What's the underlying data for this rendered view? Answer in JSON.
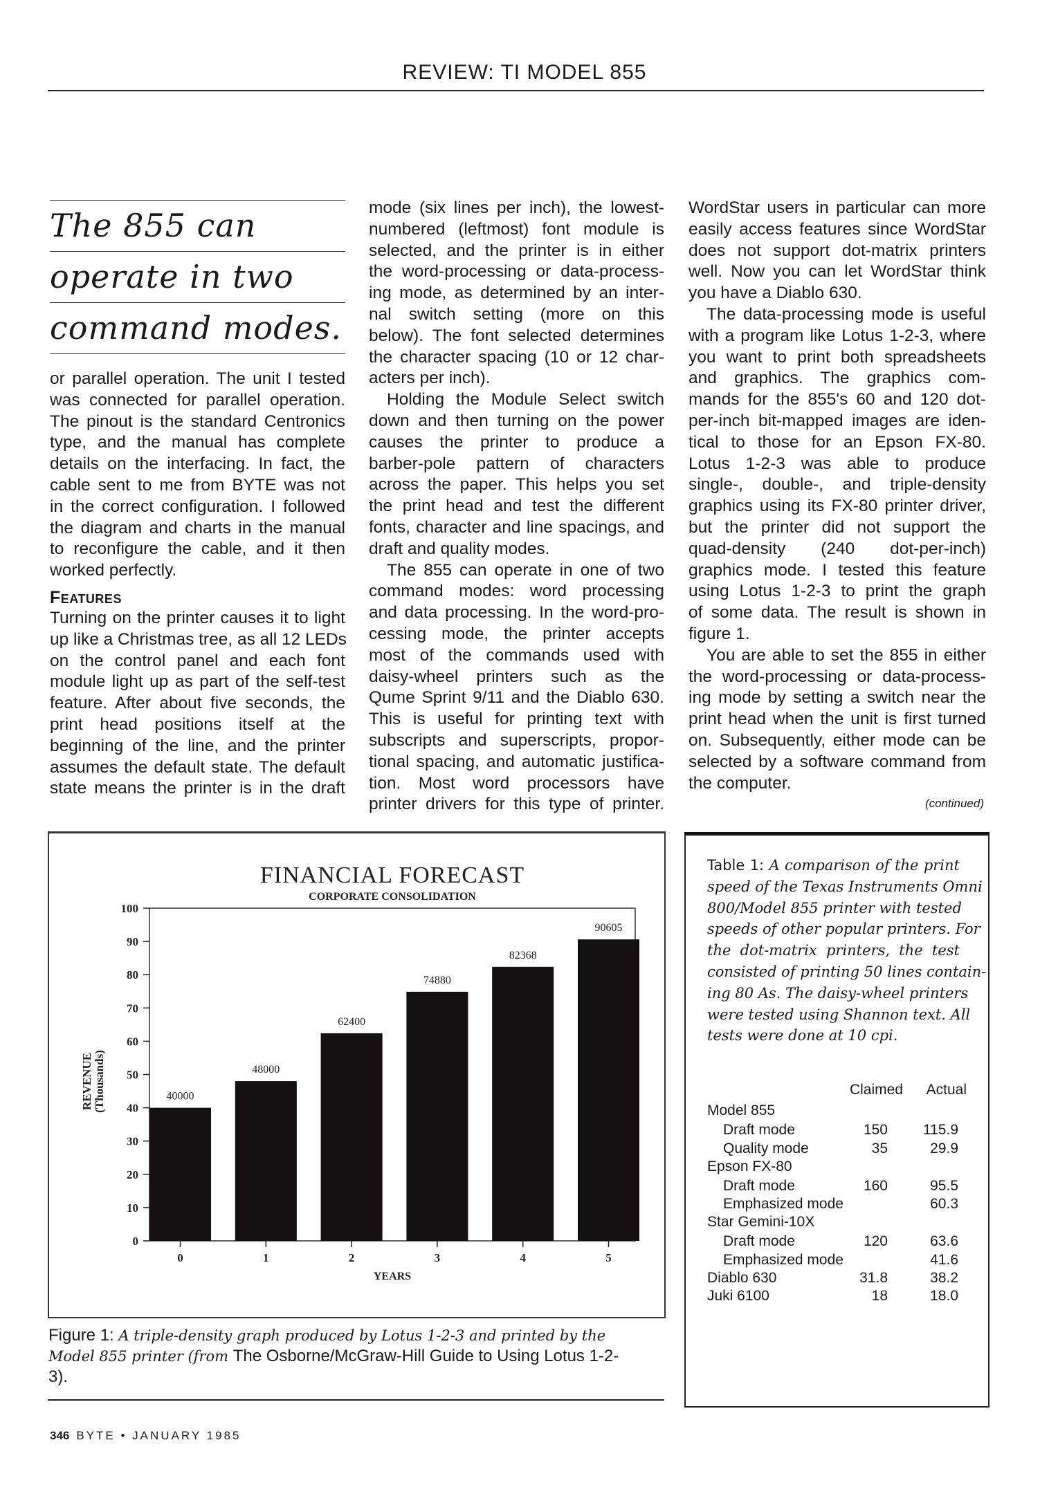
{
  "running_head": "REVIEW: TI MODEL 855",
  "pull_quote": [
    "The 855 can",
    "operate in two",
    "command modes."
  ],
  "columns": [
    [
      {
        "indent": false,
        "lines": [
          "or parallel operation. The unit I tested",
          "was connected for parallel operation.",
          "The pinout is the standard Centronics",
          "type, and the manual has complete",
          "details on the interfacing. In fact, the",
          "cable sent to me from BYTE was not",
          "in the correct configuration. I followed",
          "the diagram and charts in the manual",
          "to reconfigure the cable, and it then",
          "worked perfectly."
        ]
      },
      {
        "heading": "Features"
      },
      {
        "indent": false,
        "lines": [
          "Turning on the printer causes it to light",
          "up like a Christmas tree, as all 12 LEDs",
          "on the control panel and each font",
          "module light up as part of the self-test",
          "feature. After about five seconds, the",
          "print head positions itself at the",
          "beginning of the line, and the printer",
          "assumes the default state. The default",
          "state means the printer is in the draft"
        ],
        "continues": true
      }
    ],
    [
      {
        "indent": false,
        "lines": [
          "mode (six lines per inch), the lowest-",
          "numbered (leftmost) font module is",
          "selected, and the printer is in either",
          "the word-processing or data-process-",
          "ing mode, as determined by an inter-",
          "nal switch setting (more on this",
          "below). The font selected determines",
          "the character spacing (10 or 12 char-",
          "acters per inch)."
        ]
      },
      {
        "indent": true,
        "lines": [
          "Holding the Module Select switch",
          "down and then turning on the power",
          "causes the printer to produce a",
          "barber-pole pattern of characters",
          "across the paper. This helps you set",
          "the print head and test the different",
          "fonts, character and line spacings, and",
          "draft and quality modes."
        ]
      },
      {
        "indent": true,
        "lines": [
          "The 855 can operate in one of two",
          "command modes: word processing",
          "and data processing. In the word-pro-",
          "cessing mode, the printer accepts",
          "most of the commands used with",
          "daisy-wheel printers such as the",
          "Qume Sprint 9/11 and the Diablo 630.",
          "This is useful for printing text with",
          "subscripts and superscripts, propor-",
          "tional spacing, and automatic justifica-",
          "tion. Most word processors have",
          "printer drivers for this type of printer."
        ],
        "continues": true
      }
    ],
    [
      {
        "indent": false,
        "lines": [
          "WordStar users in particular can more",
          "easily access features since WordStar",
          "does not support dot-matrix printers",
          "well. Now you can let WordStar think",
          "you have a Diablo 630."
        ]
      },
      {
        "indent": true,
        "lines": [
          "The data-processing mode is useful",
          "with a program like Lotus 1-2-3, where",
          "you want to print both spreadsheets",
          "and graphics. The graphics com-",
          "mands for the 855's 60 and 120 dot-",
          "per-inch bit-mapped images are iden-",
          "tical to those for an Epson FX-80.",
          "Lotus 1-2-3 was able to produce",
          "single-, double-, and triple-density",
          "graphics using its FX-80 printer driver,",
          "but the printer did not support the",
          "quad-density (240 dot-per-inch)",
          "graphics mode. I tested this feature",
          "using Lotus 1-2-3 to print the graph",
          "of some data. The result is shown in",
          "figure 1."
        ]
      },
      {
        "indent": true,
        "lines": [
          "You are able to set the 855 in either",
          "the word-processing or data-process-",
          "ing mode by setting a switch near the",
          "print head when the unit is first turned",
          "on. Subsequently, either mode can be",
          "selected by a software command from",
          "the computer."
        ]
      }
    ]
  ],
  "continued": "(continued)",
  "chart_data": {
    "type": "bar",
    "title": "FINANCIAL FORECAST",
    "subtitle": "CORPORATE CONSOLIDATION",
    "xlabel": "YEARS",
    "ylabel": [
      "REVENUE",
      "(Thousands)"
    ],
    "categories": [
      "0",
      "1",
      "2",
      "3",
      "4",
      "5"
    ],
    "values": [
      40000,
      48000,
      62400,
      74880,
      82368,
      90605
    ],
    "data_labels": [
      "40000",
      "48000",
      "62400",
      "74880",
      "82368",
      "90605"
    ],
    "y_ticks": [
      0,
      10,
      20,
      30,
      40,
      50,
      60,
      70,
      80,
      90,
      100
    ],
    "y_unit_divisor": 1000,
    "ylim": [
      0,
      100
    ],
    "grid": false,
    "bar_color": "#141010"
  },
  "figure_caption": {
    "prefix": "Figure 1: ",
    "italic1": "A triple-density graph produced by Lotus 1-2-3 and printed by the Model 855 printer (from ",
    "roman": "The Osborne/McGraw-Hill Guide to Using Lotus 1-2-3",
    "suffix": ")."
  },
  "table": {
    "caption_lines": [
      [
        {
          "t": "Table 1: ",
          "up": true
        },
        {
          "t": "A comparison of the print"
        }
      ],
      [
        {
          "t": "speed of the Texas Instruments Omni"
        }
      ],
      [
        {
          "t": "800/Model 855 printer with tested"
        }
      ],
      [
        {
          "t": "speeds of other popular printers. For"
        }
      ],
      [
        {
          "t": "the dot-matrix printers, the test"
        }
      ],
      [
        {
          "t": "consisted of printing 50 lines contain-"
        }
      ],
      [
        {
          "t": "ing 80 As. The daisy-wheel printers"
        }
      ],
      [
        {
          "t": "were tested using Shannon text. All"
        }
      ],
      [
        {
          "t": "tests were done at 10 cpi."
        }
      ]
    ],
    "headers": [
      "Claimed",
      "Actual"
    ],
    "rows": [
      {
        "label": "Model 855",
        "sub": false,
        "claimed": "",
        "actual": ""
      },
      {
        "label": "Draft mode",
        "sub": true,
        "claimed": "150",
        "actual": "115.9"
      },
      {
        "label": "Quality mode",
        "sub": true,
        "claimed": "35",
        "actual": "29.9"
      },
      {
        "label": "Epson FX-80",
        "sub": false,
        "claimed": "",
        "actual": ""
      },
      {
        "label": "Draft mode",
        "sub": true,
        "claimed": "160",
        "actual": "95.5"
      },
      {
        "label": "Emphasized mode",
        "sub": true,
        "claimed": "",
        "actual": "60.3"
      },
      {
        "label": "Star Gemini-10X",
        "sub": false,
        "claimed": "",
        "actual": ""
      },
      {
        "label": "Draft mode",
        "sub": true,
        "claimed": "120",
        "actual": "63.6"
      },
      {
        "label": "Emphasized mode",
        "sub": true,
        "claimed": "",
        "actual": "41.6"
      },
      {
        "label": "Diablo 630",
        "sub": false,
        "claimed": "31.8",
        "actual": "38.2"
      },
      {
        "label": "Juki 6100",
        "sub": false,
        "claimed": "18",
        "actual": "18.0"
      }
    ]
  },
  "footer": {
    "page": "346",
    "text": "BYTE • JANUARY 1985"
  }
}
